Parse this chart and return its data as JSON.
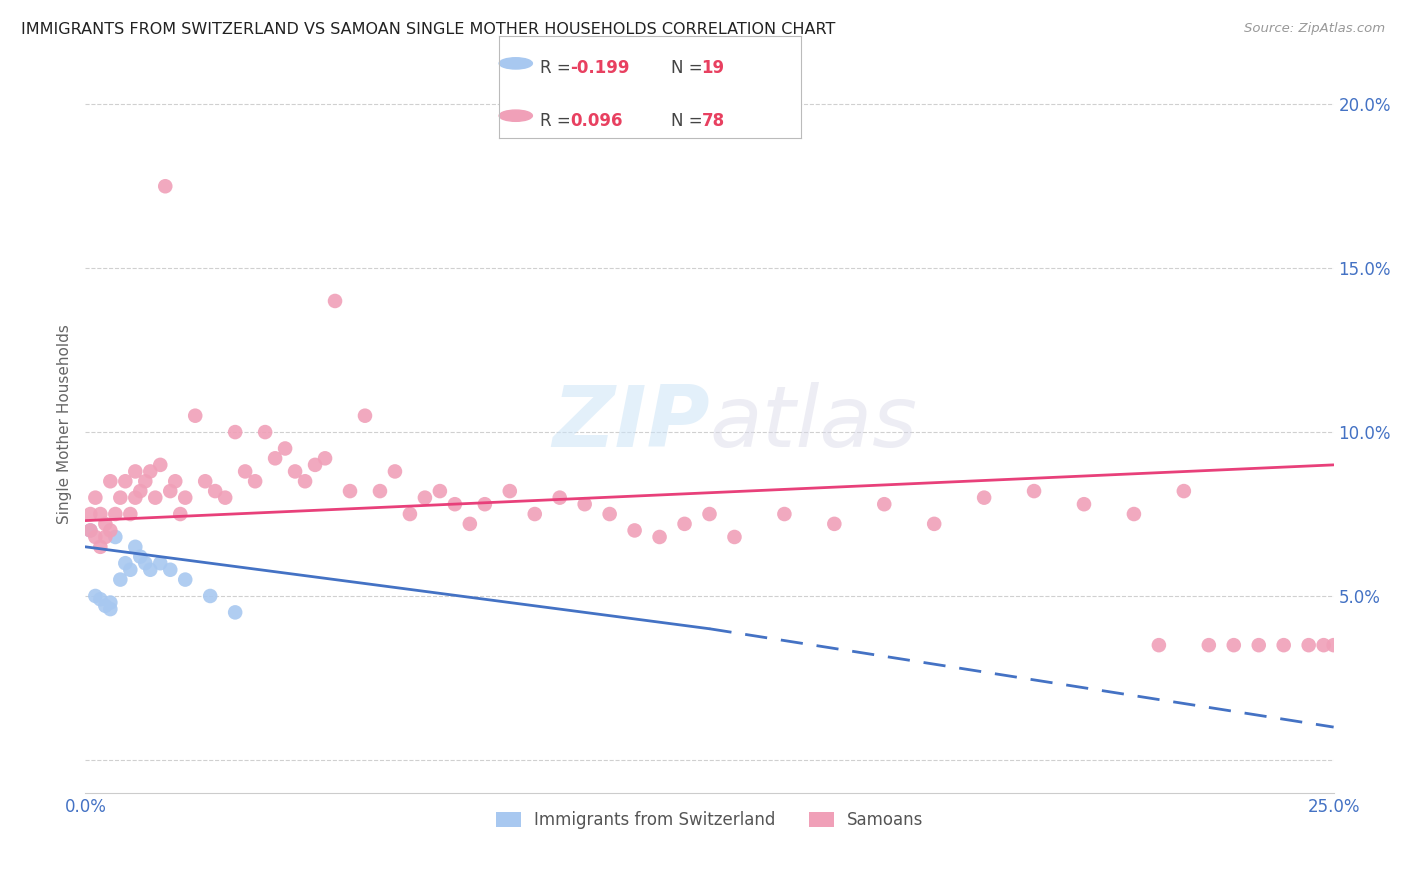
{
  "title": "IMMIGRANTS FROM SWITZERLAND VS SAMOAN SINGLE MOTHER HOUSEHOLDS CORRELATION CHART",
  "source": "Source: ZipAtlas.com",
  "ylabel": "Single Mother Households",
  "xlim": [
    0.0,
    0.25
  ],
  "ylim": [
    -0.01,
    0.215
  ],
  "color_swiss": "#a8c8f0",
  "color_samoan": "#f0a0b8",
  "color_swiss_line": "#4472c4",
  "color_samoan_line": "#e8407a",
  "color_axis": "#4472c4",
  "background_color": "#ffffff",
  "swiss_x": [
    0.001,
    0.002,
    0.003,
    0.004,
    0.005,
    0.005,
    0.006,
    0.007,
    0.008,
    0.009,
    0.01,
    0.011,
    0.012,
    0.013,
    0.015,
    0.017,
    0.02,
    0.025,
    0.03
  ],
  "swiss_y": [
    0.07,
    0.05,
    0.049,
    0.047,
    0.046,
    0.048,
    0.068,
    0.055,
    0.06,
    0.058,
    0.065,
    0.062,
    0.06,
    0.058,
    0.06,
    0.058,
    0.055,
    0.05,
    0.045
  ],
  "samoan_x": [
    0.001,
    0.001,
    0.002,
    0.002,
    0.003,
    0.003,
    0.004,
    0.004,
    0.005,
    0.005,
    0.006,
    0.007,
    0.008,
    0.009,
    0.01,
    0.01,
    0.011,
    0.012,
    0.013,
    0.014,
    0.015,
    0.016,
    0.017,
    0.018,
    0.019,
    0.02,
    0.022,
    0.024,
    0.026,
    0.028,
    0.03,
    0.032,
    0.034,
    0.036,
    0.038,
    0.04,
    0.042,
    0.044,
    0.046,
    0.048,
    0.05,
    0.053,
    0.056,
    0.059,
    0.062,
    0.065,
    0.068,
    0.071,
    0.074,
    0.077,
    0.08,
    0.085,
    0.09,
    0.095,
    0.1,
    0.105,
    0.11,
    0.115,
    0.12,
    0.125,
    0.13,
    0.14,
    0.15,
    0.16,
    0.17,
    0.18,
    0.19,
    0.2,
    0.21,
    0.215,
    0.22,
    0.225,
    0.23,
    0.235,
    0.24,
    0.245,
    0.248,
    0.25
  ],
  "samoan_y": [
    0.07,
    0.075,
    0.08,
    0.068,
    0.075,
    0.065,
    0.072,
    0.068,
    0.085,
    0.07,
    0.075,
    0.08,
    0.085,
    0.075,
    0.08,
    0.088,
    0.082,
    0.085,
    0.088,
    0.08,
    0.09,
    0.175,
    0.082,
    0.085,
    0.075,
    0.08,
    0.105,
    0.085,
    0.082,
    0.08,
    0.1,
    0.088,
    0.085,
    0.1,
    0.092,
    0.095,
    0.088,
    0.085,
    0.09,
    0.092,
    0.14,
    0.082,
    0.105,
    0.082,
    0.088,
    0.075,
    0.08,
    0.082,
    0.078,
    0.072,
    0.078,
    0.082,
    0.075,
    0.08,
    0.078,
    0.075,
    0.07,
    0.068,
    0.072,
    0.075,
    0.068,
    0.075,
    0.072,
    0.078,
    0.072,
    0.08,
    0.082,
    0.078,
    0.075,
    0.035,
    0.082,
    0.035,
    0.035,
    0.035,
    0.035,
    0.035,
    0.035,
    0.035
  ]
}
